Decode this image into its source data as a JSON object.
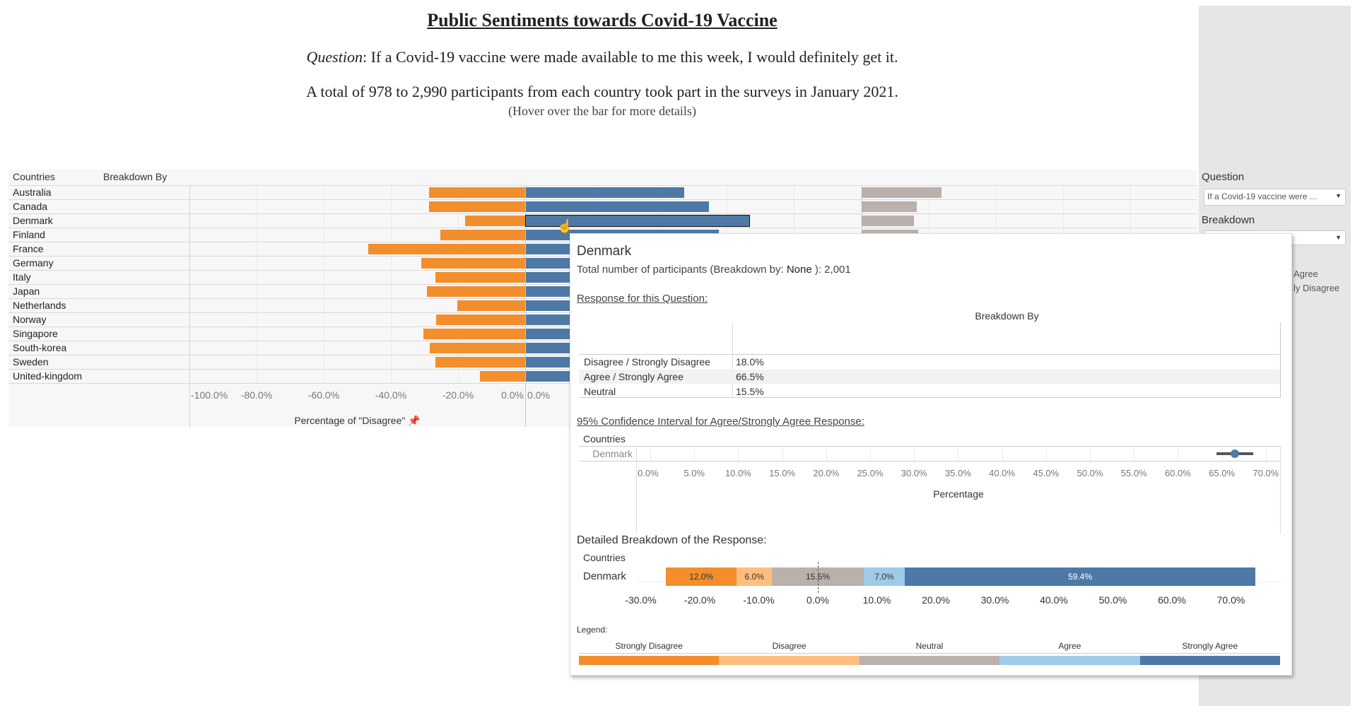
{
  "header": {
    "title": "Public Sentiments towards Covid-19 Vaccine",
    "question_label": "Question",
    "question_text": ": If a Covid-19 vaccine were made available to me this week, I would definitely get it.",
    "total_text": "A total of 978 to 2,990 participants from each country took part in the surveys in January 2021.",
    "hover_hint": "(Hover over the bar for more details)"
  },
  "sidebar": {
    "question_label": "Question",
    "question_value": "If a Covid-19 vaccine were ...",
    "breakdown_label": "Breakdown",
    "breakdown_value": "",
    "legend_fragments": [
      "Agree",
      "ly Disagree"
    ]
  },
  "colors": {
    "strongly_disagree": "#f28e2b",
    "disagree": "#ffbe7d",
    "neutral": "#bab0ac",
    "agree": "#a0cbe8",
    "strongly_agree": "#4e79a7"
  },
  "chart_data": {
    "type": "bar",
    "col_headers": [
      "Countries",
      "Breakdown By"
    ],
    "categories": [
      "Australia",
      "Canada",
      "Denmark",
      "Finland",
      "France",
      "Germany",
      "Italy",
      "Japan",
      "Netherlands",
      "Norway",
      "Singapore",
      "South-korea",
      "Sweden",
      "United-kingdom"
    ],
    "series": [
      {
        "key": "disagree",
        "values": [
          -28.6,
          -28.6,
          -18.0,
          -25.3,
          -46.8,
          -30.9,
          -26.8,
          -29.3,
          -20.3,
          -26.5,
          -30.4,
          -28.4,
          -26.8,
          -13.5
        ]
      },
      {
        "key": "agree",
        "values": [
          47.2,
          54.6,
          66.5,
          57.5,
          null,
          null,
          null,
          null,
          null,
          null,
          null,
          null,
          null,
          null
        ]
      },
      {
        "key": "neutral",
        "values": [
          23.7,
          16.5,
          15.5,
          16.8,
          null,
          null,
          null,
          null,
          null,
          null,
          null,
          null,
          null,
          null
        ]
      }
    ],
    "highlighted": "Denmark",
    "disagree_ticks": [
      "-100.0%",
      "-80.0%",
      "-60.0%",
      "-40.0%",
      "-20.0%",
      "0.0%"
    ],
    "disagree_tick_values": [
      -100,
      -80,
      -60,
      -40,
      -20,
      0
    ],
    "agree_ticks": [
      "0.0%"
    ],
    "xlabel": "Percentage of \"Disagree\"",
    "xlim": [
      -100,
      100
    ],
    "grid": true
  },
  "tooltip": {
    "country": "Denmark",
    "participants_prefix": "Total number of participants (Breakdown by: ",
    "participants_breakdown": "None",
    "participants_suffix": " ): 2,001",
    "response_heading": "Response for this Question:",
    "table_header": "Breakdown By",
    "table_rows": [
      {
        "label": "Disagree / Strongly Disagree",
        "value": "18.0%"
      },
      {
        "label": "Agree / Strongly Agree",
        "value": "66.5%"
      },
      {
        "label": "Neutral",
        "value": "15.5%"
      }
    ],
    "ci_heading": "95% Confidence Interval for Agree/Strongly Agree Response:",
    "ci_col_header": "Countries",
    "ci_country": "Denmark",
    "ci": {
      "estimate": 66.5,
      "low": 64.4,
      "high": 68.6
    },
    "ci_ticks": [
      "0.0%",
      "5.0%",
      "10.0%",
      "15.0%",
      "20.0%",
      "25.0%",
      "30.0%",
      "35.0%",
      "40.0%",
      "45.0%",
      "50.0%",
      "55.0%",
      "60.0%",
      "65.0%",
      "70.0%"
    ],
    "ci_xlabel": "Percentage",
    "detail_heading": "Detailed Breakdown of the Response:",
    "detail_col_header": "Countries",
    "detail_country": "Denmark",
    "detail_segments": [
      {
        "key": "strongly_disagree",
        "value": 12.0,
        "label": "12.0%"
      },
      {
        "key": "disagree",
        "value": 6.0,
        "label": "6.0%"
      },
      {
        "key": "neutral",
        "value": 15.5,
        "label": "15.5%"
      },
      {
        "key": "agree",
        "value": 7.0,
        "label": "7.0%"
      },
      {
        "key": "strongly_agree",
        "value": 59.4,
        "label": "59.4%"
      }
    ],
    "detail_ticks": [
      "-30.0%",
      "-20.0%",
      "-10.0%",
      "0.0%",
      "10.0%",
      "20.0%",
      "30.0%",
      "40.0%",
      "50.0%",
      "60.0%",
      "70.0%"
    ],
    "detail_tick_values": [
      -30,
      -20,
      -10,
      0,
      10,
      20,
      30,
      40,
      50,
      60,
      70
    ],
    "legend_title": "Legend:",
    "legend_items": [
      {
        "key": "strongly_disagree",
        "label": "Strongly Disagree"
      },
      {
        "key": "disagree",
        "label": "Disagree"
      },
      {
        "key": "neutral",
        "label": "Neutral"
      },
      {
        "key": "agree",
        "label": "Agree"
      },
      {
        "key": "strongly_agree",
        "label": "Strongly Agree"
      }
    ]
  }
}
